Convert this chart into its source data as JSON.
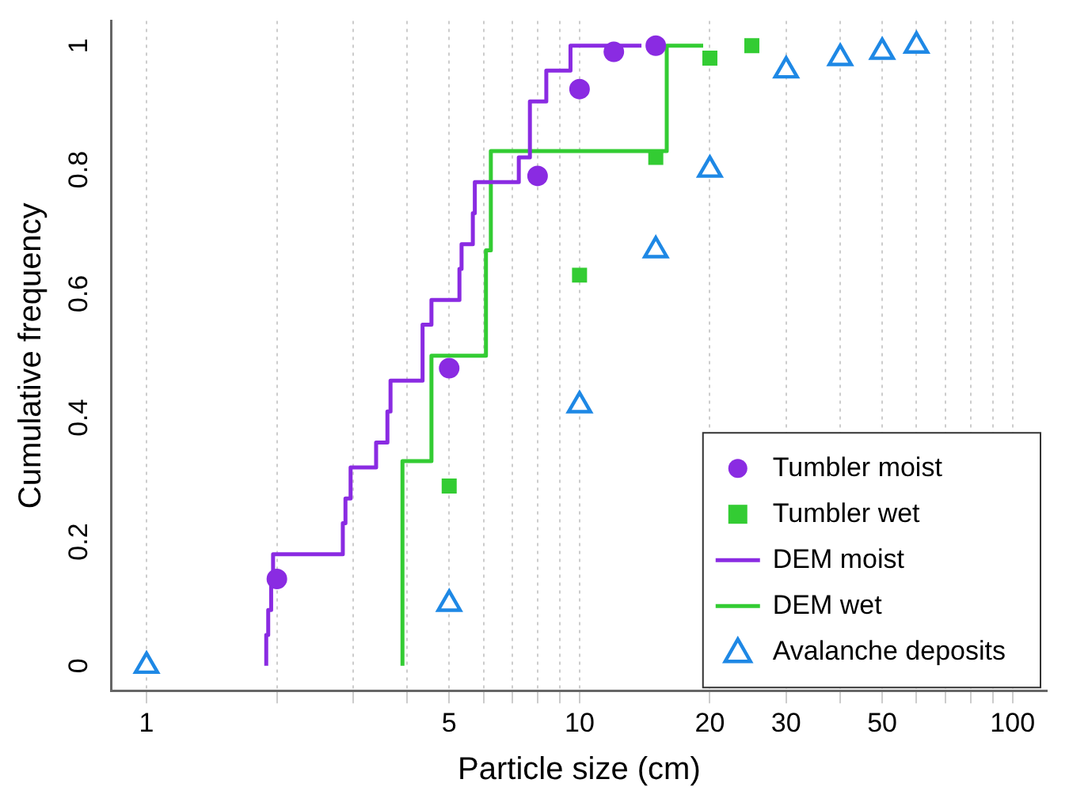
{
  "chart_data": {
    "type": "scatter",
    "xlabel": "Particle size (cm)",
    "ylabel": "Cumulative frequency",
    "log": "x",
    "grid": "x",
    "legend": "bottom right",
    "xlim": [
      0.83,
      120
    ],
    "ylim": [
      -0.04,
      1.04
    ],
    "xticks": [
      1,
      {
        "value": 2,
        "label": null
      },
      {
        "value": 3,
        "label": null
      },
      {
        "value": 4,
        "label": null
      },
      5,
      {
        "value": 6,
        "label": null
      },
      {
        "value": 7,
        "label": null
      },
      {
        "value": 8,
        "label": null
      },
      {
        "value": 9,
        "label": null
      },
      10,
      20,
      30,
      {
        "value": 40,
        "label": null
      },
      50,
      {
        "value": 60,
        "label": null
      },
      {
        "value": 70,
        "label": null
      },
      {
        "value": 80,
        "label": null
      },
      {
        "value": 90,
        "label": null
      },
      100
    ],
    "yticks": [
      0,
      0.2,
      0.4,
      0.6,
      0.8,
      1
    ],
    "series": [
      {
        "name": "Tumbler moist",
        "marker": "circle",
        "color": "#8a2be2",
        "x": [
          2,
          5,
          8,
          10,
          12,
          15
        ],
        "values": [
          0.14,
          0.48,
          0.79,
          0.93,
          0.99,
          1.0
        ]
      },
      {
        "name": "Tumbler wet",
        "marker": "square",
        "color": "#33cc33",
        "x": [
          5,
          10,
          15,
          20,
          25
        ],
        "values": [
          0.29,
          0.63,
          0.82,
          0.98,
          1.0
        ]
      },
      {
        "name": "DEM moist",
        "type": "step",
        "marker": "none",
        "color": "#8a2be2",
        "x": [
          1.89,
          1.91,
          1.94,
          1.96,
          2.84,
          2.88,
          2.96,
          3.39,
          3.6,
          3.66,
          4.34,
          4.55,
          5.28,
          5.34,
          5.67,
          5.73,
          7.24,
          7.68,
          8.38,
          9.53,
          13.9
        ],
        "values": [
          0,
          0.05,
          0.09,
          0.14,
          0.18,
          0.23,
          0.27,
          0.32,
          0.36,
          0.41,
          0.46,
          0.55,
          0.59,
          0.64,
          0.68,
          0.73,
          0.78,
          0.82,
          0.91,
          0.96,
          1.0
        ]
      },
      {
        "name": "DEM wet",
        "type": "step",
        "marker": "none",
        "color": "#33cc33",
        "x": [
          3.9,
          3.9,
          4.55,
          6.08,
          6.24,
          15.9,
          19.3
        ],
        "values": [
          0,
          0.17,
          0.33,
          0.5,
          0.67,
          0.83,
          1.0
        ]
      },
      {
        "name": "Avalanche deposits",
        "marker": "triangle",
        "color": "#1e88e5",
        "x": [
          1,
          5,
          10,
          15,
          20,
          30,
          40,
          50,
          60
        ],
        "values": [
          0,
          0.1,
          0.42,
          0.67,
          0.8,
          0.96,
          0.98,
          0.99,
          1.0
        ]
      }
    ]
  }
}
